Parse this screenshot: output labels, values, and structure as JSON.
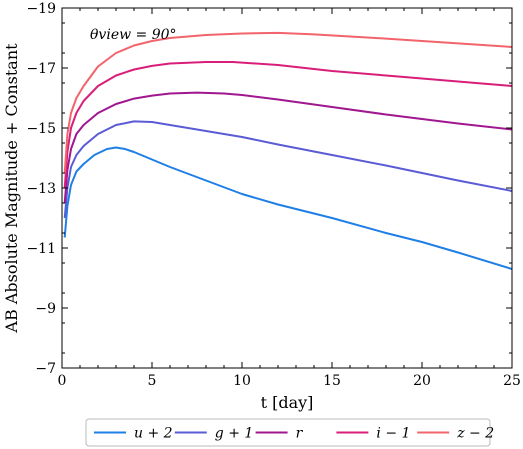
{
  "chart_data": {
    "type": "line",
    "xlabel": "t [day]",
    "ylabel": "AB Absolute Magnitude + Constant",
    "xlim": [
      0,
      25
    ],
    "ylim": [
      -7,
      -19
    ],
    "y_inverted": true,
    "grid": false,
    "annotation": "θview = 90°",
    "legend_position": "bottom",
    "x_ticks": [
      {
        "value": 0,
        "label": "0"
      },
      {
        "value": 5,
        "label": "5"
      },
      {
        "value": 10,
        "label": "10"
      },
      {
        "value": 15,
        "label": "15"
      },
      {
        "value": 20,
        "label": "20"
      },
      {
        "value": 25,
        "label": "25"
      }
    ],
    "y_ticks": [
      {
        "value": -19,
        "label": "−19"
      },
      {
        "value": -17,
        "label": "−17"
      },
      {
        "value": -15,
        "label": "−15"
      },
      {
        "value": -13,
        "label": "−13"
      },
      {
        "value": -11,
        "label": "−11"
      },
      {
        "value": -9,
        "label": "−9"
      },
      {
        "value": -7,
        "label": "−7"
      }
    ],
    "series": [
      {
        "name": "u + 2",
        "color": "#1f7fe6",
        "points": [
          [
            0.15,
            -11.35
          ],
          [
            0.3,
            -12.4
          ],
          [
            0.5,
            -13.1
          ],
          [
            0.8,
            -13.55
          ],
          [
            1.2,
            -13.8
          ],
          [
            1.8,
            -14.1
          ],
          [
            2.5,
            -14.3
          ],
          [
            3.0,
            -14.35
          ],
          [
            3.5,
            -14.3
          ],
          [
            4,
            -14.2
          ],
          [
            5,
            -13.95
          ],
          [
            6,
            -13.7
          ],
          [
            8,
            -13.25
          ],
          [
            10,
            -12.8
          ],
          [
            12,
            -12.45
          ],
          [
            15,
            -12.0
          ],
          [
            18,
            -11.5
          ],
          [
            20,
            -11.2
          ],
          [
            22,
            -10.85
          ],
          [
            25,
            -10.3
          ]
        ]
      },
      {
        "name": "g + 1",
        "color": "#5b5bd6",
        "points": [
          [
            0.15,
            -12.0
          ],
          [
            0.3,
            -13.0
          ],
          [
            0.5,
            -13.7
          ],
          [
            0.8,
            -14.1
          ],
          [
            1.2,
            -14.4
          ],
          [
            2,
            -14.8
          ],
          [
            3,
            -15.1
          ],
          [
            4,
            -15.22
          ],
          [
            5,
            -15.2
          ],
          [
            6,
            -15.1
          ],
          [
            8,
            -14.9
          ],
          [
            10,
            -14.7
          ],
          [
            12,
            -14.45
          ],
          [
            15,
            -14.1
          ],
          [
            18,
            -13.75
          ],
          [
            20,
            -13.5
          ],
          [
            22,
            -13.25
          ],
          [
            25,
            -12.9
          ]
        ]
      },
      {
        "name": "r",
        "color": "#a0178f",
        "points": [
          [
            0.15,
            -12.5
          ],
          [
            0.3,
            -13.6
          ],
          [
            0.5,
            -14.3
          ],
          [
            0.8,
            -14.8
          ],
          [
            1.2,
            -15.1
          ],
          [
            2,
            -15.5
          ],
          [
            3,
            -15.8
          ],
          [
            4,
            -15.98
          ],
          [
            5,
            -16.08
          ],
          [
            6,
            -16.15
          ],
          [
            7.5,
            -16.18
          ],
          [
            9,
            -16.15
          ],
          [
            10,
            -16.1
          ],
          [
            12,
            -15.95
          ],
          [
            15,
            -15.7
          ],
          [
            18,
            -15.45
          ],
          [
            20,
            -15.3
          ],
          [
            22,
            -15.15
          ],
          [
            25,
            -14.95
          ]
        ]
      },
      {
        "name": "i − 1",
        "color": "#d91e7a",
        "points": [
          [
            0.15,
            -13.0
          ],
          [
            0.3,
            -14.2
          ],
          [
            0.5,
            -15.0
          ],
          [
            0.8,
            -15.5
          ],
          [
            1.2,
            -15.9
          ],
          [
            2,
            -16.4
          ],
          [
            3,
            -16.75
          ],
          [
            4,
            -16.95
          ],
          [
            5,
            -17.07
          ],
          [
            6,
            -17.15
          ],
          [
            8,
            -17.2
          ],
          [
            9.5,
            -17.2
          ],
          [
            10,
            -17.18
          ],
          [
            12,
            -17.1
          ],
          [
            15,
            -16.9
          ],
          [
            18,
            -16.75
          ],
          [
            20,
            -16.65
          ],
          [
            22,
            -16.55
          ],
          [
            25,
            -16.4
          ]
        ]
      },
      {
        "name": "z − 2",
        "color": "#f2636b",
        "points": [
          [
            0.15,
            -13.5
          ],
          [
            0.3,
            -14.8
          ],
          [
            0.5,
            -15.5
          ],
          [
            0.8,
            -16.0
          ],
          [
            1.2,
            -16.4
          ],
          [
            2,
            -17.05
          ],
          [
            3,
            -17.5
          ],
          [
            4,
            -17.75
          ],
          [
            5,
            -17.9
          ],
          [
            6,
            -18.0
          ],
          [
            8,
            -18.1
          ],
          [
            10,
            -18.15
          ],
          [
            12,
            -18.17
          ],
          [
            14,
            -18.12
          ],
          [
            16,
            -18.05
          ],
          [
            18,
            -17.98
          ],
          [
            20,
            -17.9
          ],
          [
            22,
            -17.82
          ],
          [
            25,
            -17.7
          ]
        ]
      }
    ]
  }
}
